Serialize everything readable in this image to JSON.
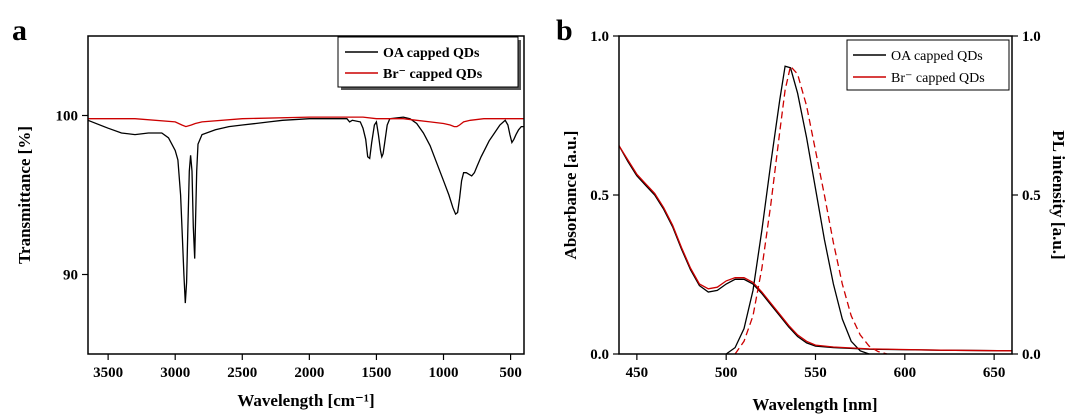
{
  "chart_data": [
    {
      "panel": "a",
      "type": "line",
      "title": "",
      "xlabel": "Wavelength [cm⁻¹]",
      "ylabel": "Transmittance [%]",
      "xlim": [
        3650,
        400
      ],
      "ylim": [
        85,
        105
      ],
      "x_reversed": true,
      "xticks": [
        3500,
        3000,
        2500,
        2000,
        1500,
        1000,
        500
      ],
      "yticks": [
        90,
        100
      ],
      "legend_position": "top-right",
      "series": [
        {
          "name": "OA capped QDs",
          "color": "#000000",
          "points": [
            [
              3650,
              99.7
            ],
            [
              3500,
              99.2
            ],
            [
              3400,
              98.9
            ],
            [
              3300,
              98.8
            ],
            [
              3200,
              98.9
            ],
            [
              3100,
              98.9
            ],
            [
              3050,
              98.6
            ],
            [
              3000,
              97.8
            ],
            [
              2980,
              97.2
            ],
            [
              2960,
              95
            ],
            [
              2945,
              92
            ],
            [
              2935,
              90
            ],
            [
              2925,
              88.2
            ],
            [
              2915,
              89.5
            ],
            [
              2905,
              93
            ],
            [
              2895,
              96.5
            ],
            [
              2885,
              97.5
            ],
            [
              2875,
              96.5
            ],
            [
              2865,
              93
            ],
            [
              2855,
              91
            ],
            [
              2848,
              93.5
            ],
            [
              2840,
              96.5
            ],
            [
              2830,
              98.2
            ],
            [
              2800,
              98.8
            ],
            [
              2700,
              99.1
            ],
            [
              2600,
              99.3
            ],
            [
              2500,
              99.4
            ],
            [
              2400,
              99.5
            ],
            [
              2300,
              99.6
            ],
            [
              2200,
              99.7
            ],
            [
              2000,
              99.8
            ],
            [
              1800,
              99.8
            ],
            [
              1720,
              99.8
            ],
            [
              1700,
              99.6
            ],
            [
              1680,
              99.7
            ],
            [
              1620,
              99.6
            ],
            [
              1600,
              99.2
            ],
            [
              1580,
              98.5
            ],
            [
              1565,
              97.4
            ],
            [
              1550,
              97.3
            ],
            [
              1535,
              98.3
            ],
            [
              1515,
              99.4
            ],
            [
              1500,
              99.6
            ],
            [
              1485,
              98.8
            ],
            [
              1470,
              97.8
            ],
            [
              1460,
              97.4
            ],
            [
              1450,
              97.6
            ],
            [
              1440,
              98.2
            ],
            [
              1420,
              99.4
            ],
            [
              1400,
              99.8
            ],
            [
              1300,
              99.9
            ],
            [
              1250,
              99.8
            ],
            [
              1200,
              99.5
            ],
            [
              1150,
              98.9
            ],
            [
              1100,
              98.1
            ],
            [
              1050,
              97
            ],
            [
              1000,
              95.9
            ],
            [
              960,
              95
            ],
            [
              930,
              94.2
            ],
            [
              910,
              93.8
            ],
            [
              895,
              93.9
            ],
            [
              880,
              94.8
            ],
            [
              865,
              95.9
            ],
            [
              850,
              96.4
            ],
            [
              830,
              96.4
            ],
            [
              810,
              96.3
            ],
            [
              790,
              96.2
            ],
            [
              770,
              96.4
            ],
            [
              750,
              96.8
            ],
            [
              720,
              97.4
            ],
            [
              690,
              97.9
            ],
            [
              660,
              98.4
            ],
            [
              620,
              98.9
            ],
            [
              580,
              99.4
            ],
            [
              540,
              99.7
            ],
            [
              520,
              99.4
            ],
            [
              505,
              98.8
            ],
            [
              490,
              98.3
            ],
            [
              475,
              98.5
            ],
            [
              460,
              98.8
            ],
            [
              440,
              99.1
            ],
            [
              420,
              99.3
            ],
            [
              400,
              99.3
            ]
          ]
        },
        {
          "name": "Br⁻ capped QDs",
          "color": "#cc0000",
          "points": [
            [
              3650,
              99.8
            ],
            [
              3300,
              99.8
            ],
            [
              3000,
              99.6
            ],
            [
              2950,
              99.4
            ],
            [
              2920,
              99.3
            ],
            [
              2880,
              99.4
            ],
            [
              2850,
              99.5
            ],
            [
              2800,
              99.6
            ],
            [
              2500,
              99.8
            ],
            [
              2000,
              99.9
            ],
            [
              1600,
              99.9
            ],
            [
              1500,
              99.8
            ],
            [
              1400,
              99.8
            ],
            [
              1300,
              99.8
            ],
            [
              1200,
              99.7
            ],
            [
              1100,
              99.6
            ],
            [
              1000,
              99.5
            ],
            [
              950,
              99.4
            ],
            [
              920,
              99.3
            ],
            [
              900,
              99.3
            ],
            [
              880,
              99.4
            ],
            [
              850,
              99.6
            ],
            [
              800,
              99.7
            ],
            [
              700,
              99.8
            ],
            [
              600,
              99.8
            ],
            [
              500,
              99.8
            ],
            [
              400,
              99.8
            ]
          ]
        }
      ]
    },
    {
      "panel": "b",
      "type": "line",
      "title": "",
      "xlabel": "Wavelength [nm]",
      "ylabel": "Absorbance [a.u.]",
      "y2label": "PL intensity [a.u.]",
      "xlim": [
        440,
        660
      ],
      "ylim": [
        0,
        1
      ],
      "y2lim": [
        0,
        1
      ],
      "xticks": [
        450,
        500,
        550,
        600,
        650
      ],
      "yticks": [
        0.0,
        0.5,
        1.0
      ],
      "y2ticks": [
        0.0,
        0.5,
        1.0
      ],
      "legend_position": "top-right",
      "series": [
        {
          "name": "OA capped QDs",
          "color": "#000000",
          "dash": "solid",
          "kind": "absorbance",
          "points": [
            [
              440,
              0.655
            ],
            [
              445,
              0.605
            ],
            [
              450,
              0.56
            ],
            [
              455,
              0.53
            ],
            [
              460,
              0.5
            ],
            [
              465,
              0.455
            ],
            [
              470,
              0.4
            ],
            [
              475,
              0.33
            ],
            [
              480,
              0.265
            ],
            [
              485,
              0.215
            ],
            [
              490,
              0.195
            ],
            [
              495,
              0.2
            ],
            [
              500,
              0.22
            ],
            [
              505,
              0.235
            ],
            [
              510,
              0.235
            ],
            [
              515,
              0.22
            ],
            [
              520,
              0.19
            ],
            [
              525,
              0.155
            ],
            [
              530,
              0.12
            ],
            [
              535,
              0.085
            ],
            [
              540,
              0.055
            ],
            [
              545,
              0.035
            ],
            [
              550,
              0.025
            ],
            [
              560,
              0.02
            ],
            [
              580,
              0.015
            ],
            [
              620,
              0.012
            ],
            [
              660,
              0.01
            ]
          ]
        },
        {
          "name": "OA capped QDs",
          "color": "#000000",
          "dash": "solid",
          "kind": "PL",
          "points": [
            [
              500,
              0.0
            ],
            [
              505,
              0.02
            ],
            [
              510,
              0.08
            ],
            [
              515,
              0.2
            ],
            [
              520,
              0.39
            ],
            [
              525,
              0.6
            ],
            [
              530,
              0.8
            ],
            [
              533,
              0.905
            ],
            [
              536,
              0.9
            ],
            [
              540,
              0.82
            ],
            [
              545,
              0.68
            ],
            [
              550,
              0.52
            ],
            [
              555,
              0.36
            ],
            [
              560,
              0.22
            ],
            [
              565,
              0.11
            ],
            [
              570,
              0.04
            ],
            [
              575,
              0.01
            ],
            [
              580,
              0.0
            ]
          ]
        },
        {
          "name": "Br⁻ capped QDs",
          "color": "#cc0000",
          "dash": "solid",
          "kind": "absorbance",
          "points": [
            [
              440,
              0.655
            ],
            [
              445,
              0.61
            ],
            [
              450,
              0.565
            ],
            [
              455,
              0.535
            ],
            [
              460,
              0.505
            ],
            [
              465,
              0.46
            ],
            [
              470,
              0.405
            ],
            [
              475,
              0.335
            ],
            [
              480,
              0.27
            ],
            [
              485,
              0.22
            ],
            [
              490,
              0.205
            ],
            [
              495,
              0.21
            ],
            [
              500,
              0.23
            ],
            [
              505,
              0.24
            ],
            [
              510,
              0.24
            ],
            [
              515,
              0.225
            ],
            [
              520,
              0.195
            ],
            [
              525,
              0.16
            ],
            [
              530,
              0.125
            ],
            [
              535,
              0.09
            ],
            [
              540,
              0.06
            ],
            [
              545,
              0.04
            ],
            [
              550,
              0.028
            ],
            [
              560,
              0.022
            ],
            [
              580,
              0.016
            ],
            [
              620,
              0.012
            ],
            [
              660,
              0.01
            ]
          ]
        },
        {
          "name": "Br⁻ capped QDs",
          "color": "#cc0000",
          "dash": "dashed",
          "kind": "PL",
          "points": [
            [
              505,
              0.0
            ],
            [
              510,
              0.04
            ],
            [
              515,
              0.12
            ],
            [
              520,
              0.27
            ],
            [
              525,
              0.47
            ],
            [
              530,
              0.7
            ],
            [
              533,
              0.83
            ],
            [
              536,
              0.905
            ],
            [
              540,
              0.88
            ],
            [
              545,
              0.78
            ],
            [
              550,
              0.64
            ],
            [
              555,
              0.5
            ],
            [
              560,
              0.35
            ],
            [
              565,
              0.22
            ],
            [
              570,
              0.12
            ],
            [
              575,
              0.06
            ],
            [
              580,
              0.025
            ],
            [
              585,
              0.008
            ],
            [
              590,
              0.0
            ]
          ]
        }
      ]
    }
  ]
}
